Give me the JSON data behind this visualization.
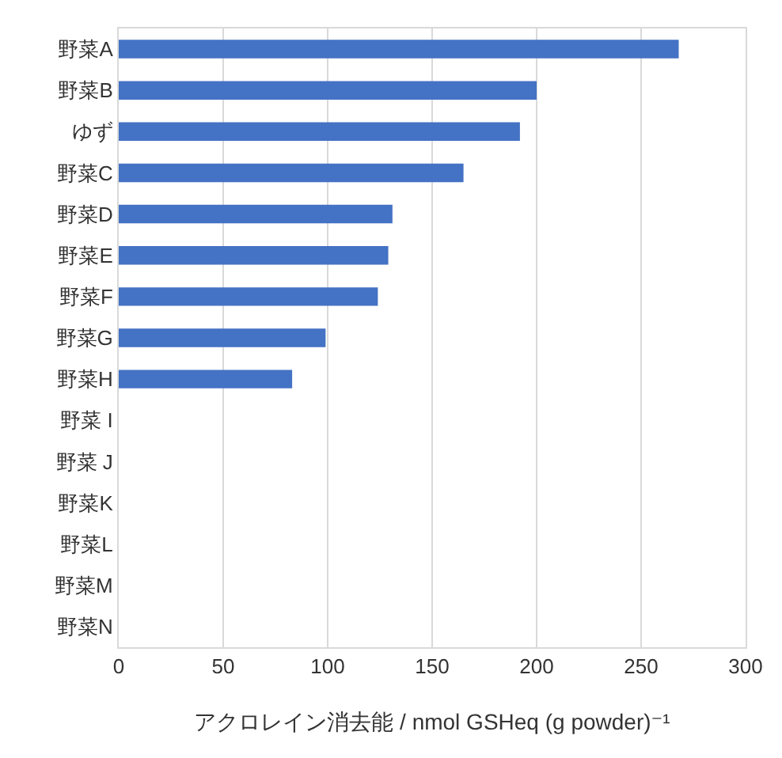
{
  "chart_data": {
    "type": "bar",
    "orientation": "horizontal",
    "xlabel": "アクロレイン消去能 / nmol GSHeq (g powder)⁻¹",
    "categories": [
      "野菜A",
      "野菜B",
      "ゆず",
      "野菜C",
      "野菜D",
      "野菜E",
      "野菜F",
      "野菜G",
      "野菜H",
      "野菜 I",
      "野菜 J",
      "野菜K",
      "野菜L",
      "野菜M",
      "野菜N"
    ],
    "values": [
      268,
      200,
      192,
      165,
      131,
      129,
      124,
      99,
      83,
      0,
      0,
      0,
      0,
      0,
      0
    ],
    "color": "#4472c4",
    "xlim": [
      0,
      300
    ],
    "xticks": [
      0,
      50,
      100,
      150,
      200,
      250,
      300
    ],
    "grid": "x"
  }
}
